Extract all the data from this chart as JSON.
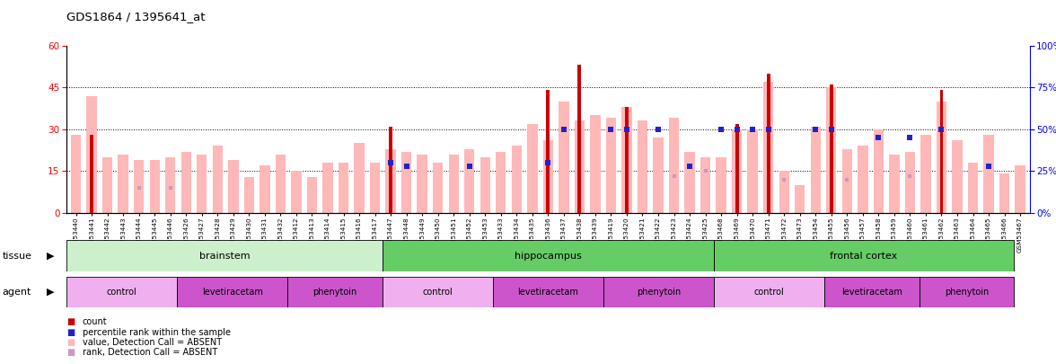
{
  "title": "GDS1864 / 1395641_at",
  "samples": [
    "GSM53440",
    "GSM53441",
    "GSM53442",
    "GSM53443",
    "GSM53444",
    "GSM53445",
    "GSM53446",
    "GSM53426",
    "GSM53427",
    "GSM53428",
    "GSM53429",
    "GSM53430",
    "GSM53431",
    "GSM53432",
    "GSM53412",
    "GSM53413",
    "GSM53414",
    "GSM53415",
    "GSM53416",
    "GSM53417",
    "GSM53447",
    "GSM53448",
    "GSM53449",
    "GSM53450",
    "GSM53451",
    "GSM53452",
    "GSM53453",
    "GSM53433",
    "GSM53434",
    "GSM53435",
    "GSM53436",
    "GSM53437",
    "GSM53438",
    "GSM53439",
    "GSM53419",
    "GSM53420",
    "GSM53421",
    "GSM53422",
    "GSM53423",
    "GSM53424",
    "GSM53425",
    "GSM53468",
    "GSM53469",
    "GSM53470",
    "GSM53471",
    "GSM53472",
    "GSM53473",
    "GSM53454",
    "GSM53455",
    "GSM53456",
    "GSM53457",
    "GSM53458",
    "GSM53459",
    "GSM53460",
    "GSM53461",
    "GSM53462",
    "GSM53463",
    "GSM53464",
    "GSM53465",
    "GSM53466",
    "GSM53467"
  ],
  "count_values": [
    0,
    28,
    0,
    0,
    0,
    0,
    0,
    0,
    0,
    0,
    0,
    0,
    0,
    0,
    0,
    0,
    0,
    0,
    0,
    0,
    31,
    0,
    0,
    0,
    0,
    0,
    0,
    0,
    0,
    0,
    44,
    0,
    53,
    0,
    0,
    38,
    0,
    0,
    0,
    0,
    0,
    0,
    32,
    0,
    50,
    0,
    0,
    0,
    46,
    0,
    0,
    0,
    0,
    0,
    0,
    44,
    0,
    0,
    0,
    0,
    0
  ],
  "pink_values": [
    28,
    42,
    20,
    21,
    19,
    19,
    20,
    22,
    21,
    24,
    19,
    13,
    17,
    21,
    15,
    13,
    18,
    18,
    25,
    18,
    23,
    22,
    21,
    18,
    21,
    23,
    20,
    22,
    24,
    32,
    26,
    40,
    33,
    35,
    34,
    38,
    33,
    27,
    34,
    22,
    20,
    20,
    30,
    30,
    47,
    15,
    10,
    31,
    45,
    23,
    24,
    30,
    21,
    22,
    28,
    40,
    26,
    18,
    28,
    14,
    17
  ],
  "blue_dot_values": [
    0,
    0,
    0,
    0,
    0,
    0,
    0,
    0,
    0,
    0,
    0,
    0,
    0,
    0,
    0,
    0,
    0,
    0,
    0,
    0,
    30,
    28,
    0,
    0,
    0,
    28,
    0,
    0,
    0,
    0,
    30,
    50,
    0,
    0,
    50,
    50,
    0,
    50,
    0,
    28,
    0,
    50,
    50,
    50,
    50,
    0,
    0,
    50,
    50,
    0,
    0,
    45,
    0,
    45,
    0,
    50,
    0,
    0,
    28,
    0,
    0
  ],
  "pink_dot_values": [
    0,
    0,
    0,
    0,
    15,
    0,
    15,
    0,
    0,
    0,
    0,
    0,
    0,
    0,
    0,
    0,
    0,
    0,
    0,
    0,
    0,
    0,
    0,
    0,
    0,
    0,
    0,
    0,
    0,
    0,
    0,
    0,
    0,
    0,
    0,
    0,
    0,
    0,
    22,
    0,
    25,
    0,
    0,
    0,
    0,
    20,
    0,
    0,
    0,
    20,
    0,
    0,
    0,
    22,
    0,
    0,
    0,
    0,
    0,
    0,
    0
  ],
  "ylim_left": [
    0,
    60
  ],
  "ylim_right": [
    0,
    100
  ],
  "yticks_left": [
    0,
    15,
    30,
    45,
    60
  ],
  "yticks_right": [
    0,
    25,
    50,
    75,
    100
  ],
  "bar_color_red": "#cc0000",
  "bar_color_pink": "#ffb8b8",
  "dot_color_blue": "#2222cc",
  "dot_color_pink_absent": "#cc99bb",
  "tissue_rows": [
    {
      "label": "brainstem",
      "start": 0,
      "end": 20,
      "color": "#ccf0cc"
    },
    {
      "label": "hippocampus",
      "start": 20,
      "end": 41,
      "color": "#66cc66"
    },
    {
      "label": "frontal cortex",
      "start": 41,
      "end": 60,
      "color": "#66cc66"
    }
  ],
  "agent_rows": [
    {
      "label": "control",
      "start": 0,
      "end": 7,
      "color": "#f0b0f0"
    },
    {
      "label": "levetiracetam",
      "start": 7,
      "end": 14,
      "color": "#cc55cc"
    },
    {
      "label": "phenytoin",
      "start": 14,
      "end": 20,
      "color": "#cc55cc"
    },
    {
      "label": "control",
      "start": 20,
      "end": 27,
      "color": "#f0b0f0"
    },
    {
      "label": "levetiracetam",
      "start": 27,
      "end": 34,
      "color": "#cc55cc"
    },
    {
      "label": "phenytoin",
      "start": 34,
      "end": 41,
      "color": "#cc55cc"
    },
    {
      "label": "control",
      "start": 41,
      "end": 48,
      "color": "#f0b0f0"
    },
    {
      "label": "levetiracetam",
      "start": 48,
      "end": 54,
      "color": "#cc55cc"
    },
    {
      "label": "phenytoin",
      "start": 54,
      "end": 60,
      "color": "#cc55cc"
    }
  ],
  "hlines": [
    15,
    30,
    45
  ],
  "legend": [
    {
      "color": "#cc0000",
      "label": "count"
    },
    {
      "color": "#2222cc",
      "label": "percentile rank within the sample"
    },
    {
      "color": "#ffb8b8",
      "label": "value, Detection Call = ABSENT"
    },
    {
      "color": "#cc99bb",
      "label": "rank, Detection Call = ABSENT"
    }
  ]
}
